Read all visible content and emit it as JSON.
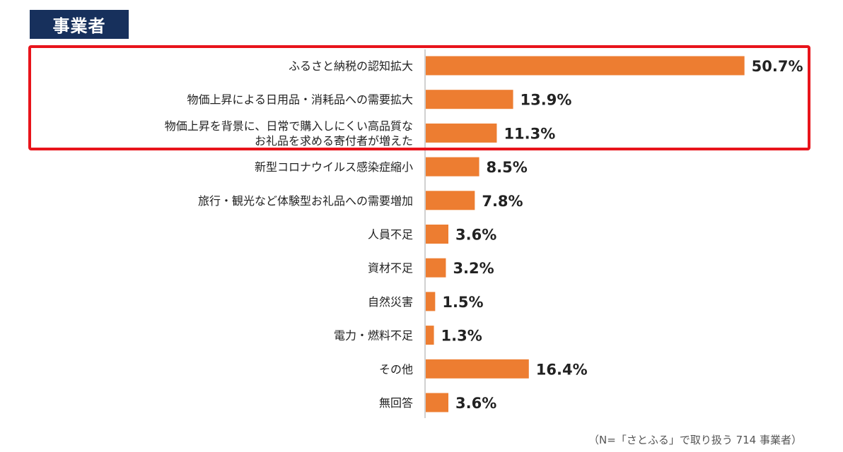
{
  "header": {
    "label": "事業者"
  },
  "footnote": "（N=「さとふる」で取り扱う 714 事業者）",
  "colors": {
    "bar": "#ed7d31",
    "header_bg": "#17305c",
    "highlight": "#e8141b",
    "axis": "#d0d0d0"
  },
  "chart_data": {
    "type": "bar",
    "orientation": "horizontal",
    "unit": "%",
    "categories": [
      [
        "ふるさと納税の認知拡大"
      ],
      [
        "物価上昇による日用品・消耗品への需要拡大"
      ],
      [
        "物価上昇を背景に、日常で購入しにくい高品質な",
        "お礼品を求める寄付者が増えた"
      ],
      [
        "新型コロナウイルス感染症縮小"
      ],
      [
        "旅行・観光など体験型お礼品への需要増加"
      ],
      [
        "人員不足"
      ],
      [
        "資材不足"
      ],
      [
        "自然災害"
      ],
      [
        "電力・燃料不足"
      ],
      [
        "その他"
      ],
      [
        "無回答"
      ]
    ],
    "values": [
      50.7,
      13.9,
      11.3,
      8.5,
      7.8,
      3.6,
      3.2,
      1.5,
      1.3,
      16.4,
      3.6
    ],
    "data_labels": [
      "50.7%",
      "13.9%",
      "11.3%",
      "8.5%",
      "7.8%",
      "3.6%",
      "3.2%",
      "1.5%",
      "1.3%",
      "16.4%",
      "3.6%"
    ],
    "highlighted_categories": [
      0,
      1,
      2
    ],
    "xlim": [
      0,
      54
    ],
    "grid": false,
    "legend": "none"
  }
}
